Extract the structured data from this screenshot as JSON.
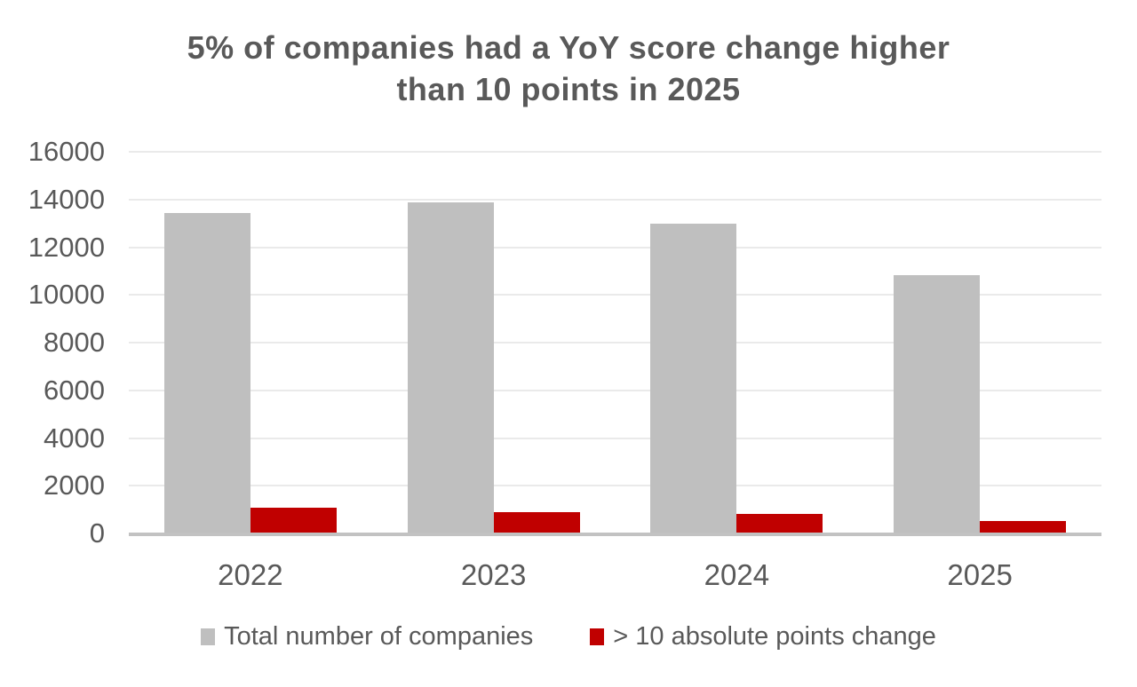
{
  "chart_data": {
    "type": "bar",
    "title": "5% of companies had a YoY score change higher than 10 points in 2025",
    "title_lines": [
      "5% of companies had a YoY score change higher",
      "than 10 points in 2025"
    ],
    "categories": [
      "2022",
      "2023",
      "2024",
      "2025"
    ],
    "series": [
      {
        "name": "Total number of companies",
        "color": "#BFBFBF",
        "values": [
          13450,
          13880,
          12990,
          10810
        ]
      },
      {
        "name": "> 10 absolute points change",
        "color": "#C00000",
        "values": [
          1070,
          880,
          830,
          510
        ]
      }
    ],
    "xlabel": "",
    "ylabel": "",
    "ylim": [
      0,
      16000
    ],
    "ytick_step": 2000,
    "yticks": [
      0,
      2000,
      4000,
      6000,
      8000,
      10000,
      12000,
      14000,
      16000
    ],
    "grid": "horizontal",
    "legend_position": "bottom"
  },
  "colors": {
    "background": "#FFFFFF",
    "text": "#595959",
    "gridline": "#EAEAEA",
    "axis_line": "#C2C2C2",
    "bar_total": "#BFBFBF",
    "bar_change": "#C00000"
  }
}
